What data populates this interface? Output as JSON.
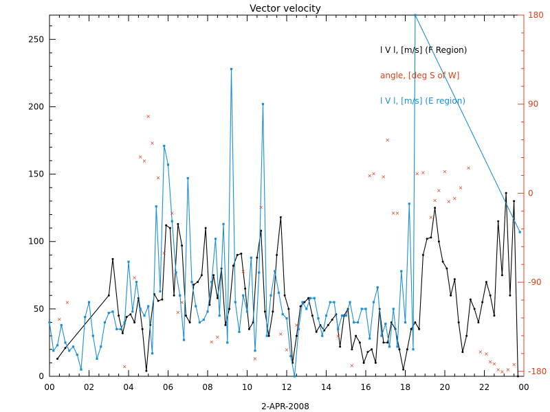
{
  "chart_data": {
    "type": "line",
    "title": "Vector velocity",
    "xlabel": "2-APR-2008",
    "x_ticks": [
      "00",
      "02",
      "04",
      "06",
      "08",
      "10",
      "12",
      "14",
      "16",
      "18",
      "20",
      "22",
      "00"
    ],
    "xlim": [
      0,
      24
    ],
    "y_left": {
      "ylim": [
        0,
        268
      ],
      "ticks": [
        "0",
        "50",
        "100",
        "150",
        "200",
        "250"
      ],
      "tick_values": [
        0,
        50,
        100,
        150,
        200,
        250
      ]
    },
    "y_right": {
      "ylim": [
        -185,
        180
      ],
      "ticks": [
        "-180",
        "-90",
        "0",
        "90",
        "180"
      ],
      "tick_values": [
        -180,
        -90,
        0,
        90,
        180
      ],
      "color": "#e0401a"
    },
    "legend": [
      {
        "label": "l V l, [m/s] (F Region)",
        "color": "#000000"
      },
      {
        "label": "angle, [deg S of W]",
        "color": "#e0401a"
      },
      {
        "label": "l V l, [m/s] (E region)",
        "color": "#1a8fd6"
      }
    ],
    "series": [
      {
        "name": "l V l, [m/s] (F Region)",
        "color": "#000000",
        "x": [
          0.4,
          0.8,
          3.0,
          3.2,
          3.5,
          3.7,
          3.9,
          4.1,
          4.3,
          4.5,
          4.7,
          4.9,
          5.1,
          5.3,
          5.5,
          5.7,
          5.9,
          6.1,
          6.3,
          6.5,
          6.7,
          6.9,
          7.1,
          7.3,
          7.5,
          7.7,
          7.9,
          8.1,
          8.3,
          8.5,
          8.7,
          8.9,
          9.1,
          9.3,
          9.5,
          9.7,
          9.9,
          10.1,
          10.3,
          10.5,
          10.7,
          10.9,
          11.1,
          11.3,
          11.5,
          11.7,
          11.9,
          12.1,
          12.3,
          12.5,
          12.7,
          12.9,
          13.1,
          13.3,
          13.5,
          13.7,
          13.9,
          14.1,
          14.3,
          14.5,
          14.7,
          14.9,
          15.1,
          15.3,
          15.5,
          15.7,
          15.9,
          16.1,
          16.3,
          16.5,
          16.7,
          16.9,
          17.1,
          17.3,
          17.5,
          17.7,
          17.9,
          18.1,
          18.3,
          18.5,
          18.7,
          18.9,
          19.1,
          19.3,
          19.5,
          19.7,
          19.9,
          20.1,
          20.3,
          20.5,
          20.7,
          20.9,
          21.1,
          21.3,
          21.5,
          21.7,
          21.9,
          22.1,
          22.3,
          22.5,
          22.7,
          22.9,
          23.1,
          23.3,
          23.5,
          23.7
        ],
        "values": [
          13,
          21,
          60,
          87,
          45,
          32,
          44,
          46,
          40,
          58,
          35,
          4,
          38,
          61,
          56,
          57,
          112,
          110,
          60,
          113,
          97,
          45,
          40,
          68,
          70,
          75,
          110,
          53,
          75,
          58,
          80,
          38,
          50,
          82,
          90,
          91,
          65,
          35,
          40,
          88,
          108,
          48,
          30,
          48,
          90,
          118,
          60,
          50,
          10,
          30,
          52,
          55,
          58,
          45,
          33,
          38,
          34,
          38,
          42,
          46,
          22,
          45,
          50,
          20,
          30,
          25,
          10,
          18,
          20,
          10,
          50,
          25,
          25,
          40,
          35,
          20,
          5,
          20,
          35,
          40,
          35,
          90,
          102,
          103,
          125,
          100,
          85,
          80,
          60,
          72,
          40,
          18,
          30,
          57,
          50,
          40,
          55,
          70,
          60,
          45,
          115,
          75,
          136,
          60,
          130,
          0
        ]
      },
      {
        "name": "l V l, [m/s] (E region)",
        "color": "#1a8fd6",
        "x": [
          0.0,
          0.2,
          0.4,
          0.6,
          0.8,
          1.0,
          1.2,
          1.4,
          1.6,
          1.8,
          2.0,
          2.2,
          2.4,
          2.6,
          2.8,
          3.0,
          3.2,
          3.4,
          3.6,
          3.8,
          4.0,
          4.2,
          4.4,
          4.6,
          4.8,
          5.0,
          5.2,
          5.4,
          5.6,
          5.8,
          6.0,
          6.2,
          6.4,
          6.6,
          6.8,
          7.0,
          7.2,
          7.4,
          7.6,
          7.8,
          8.0,
          8.2,
          8.4,
          8.6,
          8.8,
          9.0,
          9.2,
          9.4,
          9.6,
          9.8,
          10.0,
          10.2,
          10.4,
          10.6,
          10.8,
          11.0,
          11.2,
          11.4,
          11.6,
          11.8,
          12.0,
          12.2,
          12.4,
          12.6,
          12.8,
          13.0,
          13.2,
          13.4,
          13.6,
          13.8,
          14.0,
          14.2,
          14.4,
          14.6,
          14.8,
          15.0,
          15.2,
          15.4,
          15.6,
          15.8,
          16.0,
          16.2,
          16.4,
          16.6,
          16.8,
          17.0,
          17.2,
          17.4,
          17.6,
          17.8,
          18.0,
          18.2,
          18.4,
          18.5,
          23.8
        ],
        "values": [
          40,
          19,
          23,
          38,
          25,
          19,
          22,
          16,
          5,
          44,
          55,
          30,
          13,
          22,
          40,
          47,
          48,
          35,
          35,
          40,
          85,
          48,
          70,
          50,
          45,
          52,
          17,
          126,
          63,
          171,
          157,
          115,
          77,
          60,
          27,
          147,
          70,
          52,
          40,
          42,
          48,
          70,
          102,
          45,
          113,
          25,
          228,
          55,
          33,
          60,
          48,
          88,
          19,
          77,
          202,
          30,
          60,
          78,
          62,
          46,
          43,
          15,
          0,
          35,
          55,
          50,
          58,
          58,
          43,
          30,
          45,
          55,
          55,
          35,
          45,
          45,
          55,
          40,
          40,
          50,
          50,
          28,
          55,
          66,
          30,
          39,
          22,
          50,
          22,
          78,
          40,
          128,
          20,
          268,
          107
        ]
      },
      {
        "name": "angle, [deg S of W]",
        "color": "#e0401a",
        "scatter": true,
        "x": [
          0.5,
          0.9,
          3.8,
          4.3,
          4.6,
          4.8,
          5.0,
          5.2,
          5.5,
          5.8,
          6.2,
          6.5,
          6.7,
          8.2,
          8.5,
          9.8,
          10.4,
          10.7,
          11.7,
          12.0,
          12.5,
          14.6,
          15.3,
          16.2,
          16.4,
          16.9,
          17.1,
          17.4,
          17.6,
          18.6,
          18.9,
          19.3,
          19.5,
          19.7,
          20.0,
          20.2,
          20.5,
          20.8,
          21.2,
          21.8,
          22.1,
          22.3,
          22.5,
          22.7,
          22.9,
          23.2,
          23.5
        ],
        "values": [
          -127,
          -110,
          -175,
          -85,
          37,
          33,
          78,
          51,
          16,
          -60,
          -20,
          -120,
          -110,
          -150,
          -145,
          -79,
          -167,
          -14,
          -142,
          -158,
          -133,
          -144,
          -174,
          18,
          20,
          17,
          54,
          -20,
          -20,
          20,
          21,
          -24,
          -7,
          3,
          22,
          -8,
          -5,
          6,
          26,
          -160,
          -162,
          -170,
          -172,
          -178,
          -180,
          -178,
          -173
        ]
      }
    ]
  }
}
